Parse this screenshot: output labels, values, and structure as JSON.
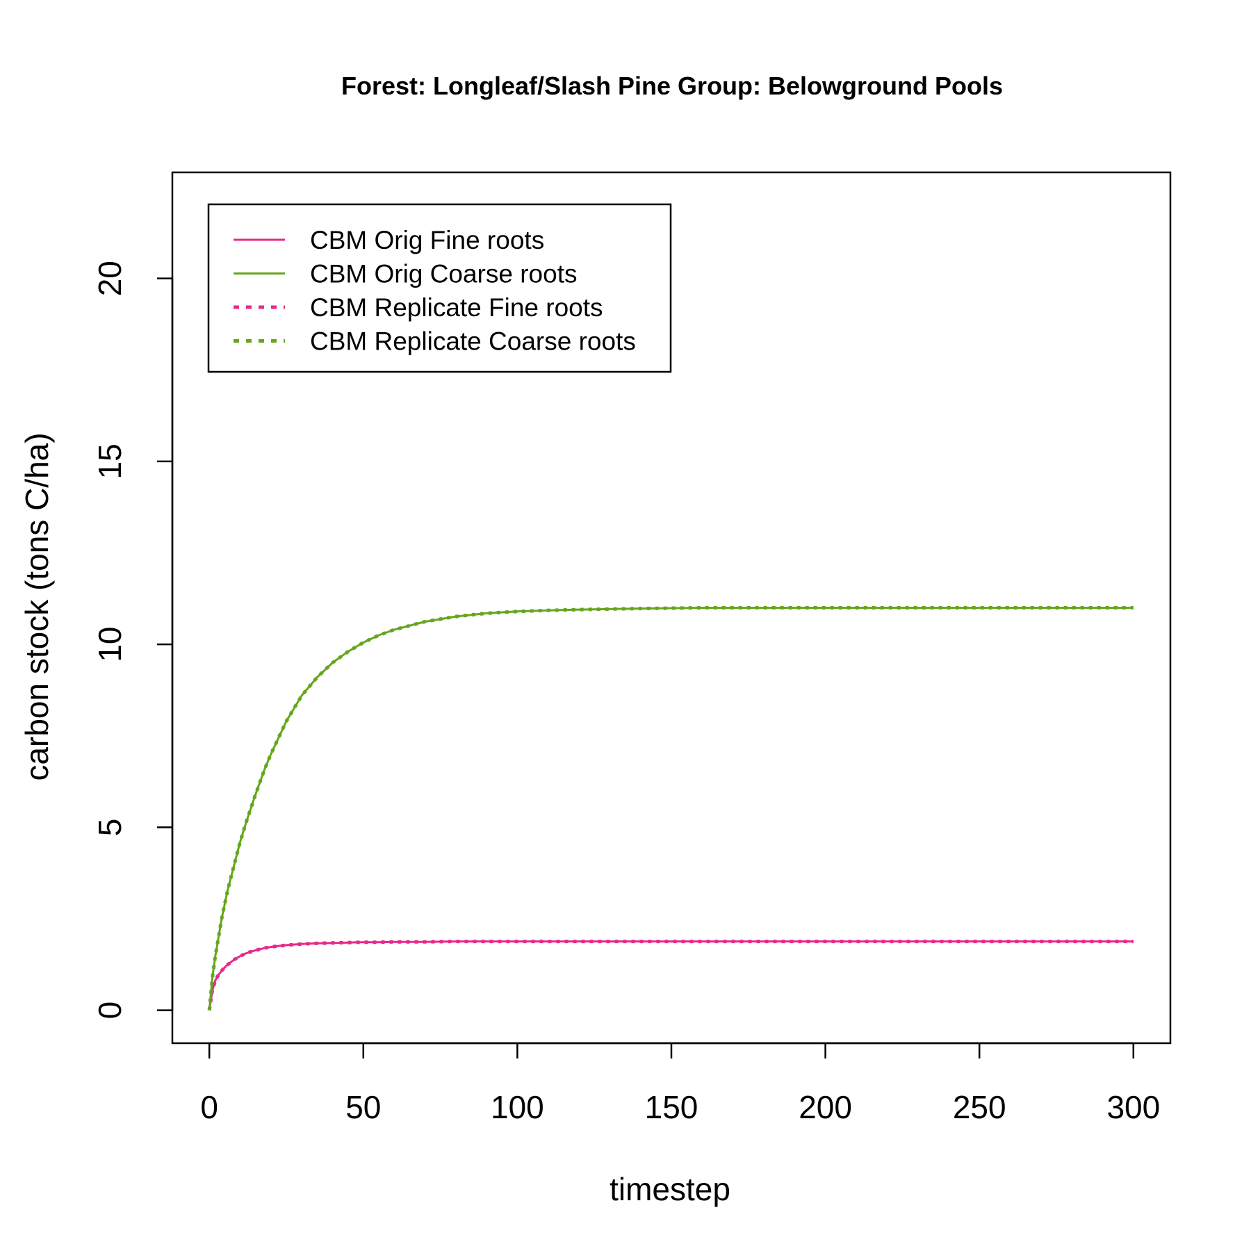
{
  "chart_data": {
    "type": "line",
    "title": "Forest: Longleaf/Slash Pine Group: Belowground Pools",
    "xlabel": "timestep",
    "ylabel": "carbon stock (tons C/ha)",
    "xlim": [
      -12,
      312
    ],
    "ylim": [
      -0.9,
      22.9
    ],
    "x_ticks": [
      0,
      50,
      100,
      150,
      200,
      250,
      300
    ],
    "y_ticks": [
      0,
      5,
      10,
      15,
      20
    ],
    "grid": false,
    "legend_position": "top-left",
    "x": [
      0,
      1,
      2,
      3,
      4,
      5,
      6,
      8,
      10,
      12,
      15,
      18,
      20,
      25,
      30,
      35,
      40,
      45,
      50,
      55,
      60,
      70,
      80,
      90,
      100,
      110,
      120,
      140,
      160,
      180,
      200,
      225,
      250,
      275,
      300
    ],
    "series": [
      {
        "name": "CBM Orig Fine roots",
        "color": "#e7298a",
        "dash": "solid",
        "values": [
          0.0,
          0.55,
          0.82,
          0.97,
          1.08,
          1.17,
          1.25,
          1.38,
          1.48,
          1.56,
          1.64,
          1.7,
          1.73,
          1.78,
          1.81,
          1.83,
          1.84,
          1.85,
          1.86,
          1.86,
          1.87,
          1.87,
          1.88,
          1.88,
          1.88,
          1.88,
          1.88,
          1.88,
          1.88,
          1.88,
          1.88,
          1.88,
          1.88,
          1.88,
          1.88
        ]
      },
      {
        "name": "CBM Orig Coarse roots",
        "color": "#66a61e",
        "dash": "solid",
        "values": [
          0.0,
          0.9,
          1.5,
          2.0,
          2.5,
          2.9,
          3.3,
          3.95,
          4.6,
          5.15,
          5.9,
          6.6,
          7.0,
          7.9,
          8.6,
          9.1,
          9.5,
          9.8,
          10.05,
          10.25,
          10.4,
          10.62,
          10.76,
          10.85,
          10.9,
          10.93,
          10.95,
          10.98,
          11.0,
          11.0,
          11.0,
          11.0,
          11.0,
          11.0,
          11.0
        ]
      },
      {
        "name": "CBM Replicate Fine roots",
        "color": "#e7298a",
        "dash": "dotted",
        "values": [
          0.0,
          0.55,
          0.82,
          0.97,
          1.08,
          1.17,
          1.25,
          1.38,
          1.48,
          1.56,
          1.64,
          1.7,
          1.73,
          1.78,
          1.81,
          1.83,
          1.84,
          1.85,
          1.86,
          1.86,
          1.87,
          1.87,
          1.88,
          1.88,
          1.88,
          1.88,
          1.88,
          1.88,
          1.88,
          1.88,
          1.88,
          1.88,
          1.88,
          1.88,
          1.88
        ]
      },
      {
        "name": "CBM Replicate Coarse roots",
        "color": "#66a61e",
        "dash": "dotted",
        "values": [
          0.0,
          0.9,
          1.5,
          2.0,
          2.5,
          2.9,
          3.3,
          3.95,
          4.6,
          5.15,
          5.9,
          6.6,
          7.0,
          7.9,
          8.6,
          9.1,
          9.5,
          9.8,
          10.05,
          10.25,
          10.4,
          10.62,
          10.76,
          10.85,
          10.9,
          10.93,
          10.95,
          10.98,
          11.0,
          11.0,
          11.0,
          11.0,
          11.0,
          11.0,
          11.0
        ]
      }
    ]
  }
}
